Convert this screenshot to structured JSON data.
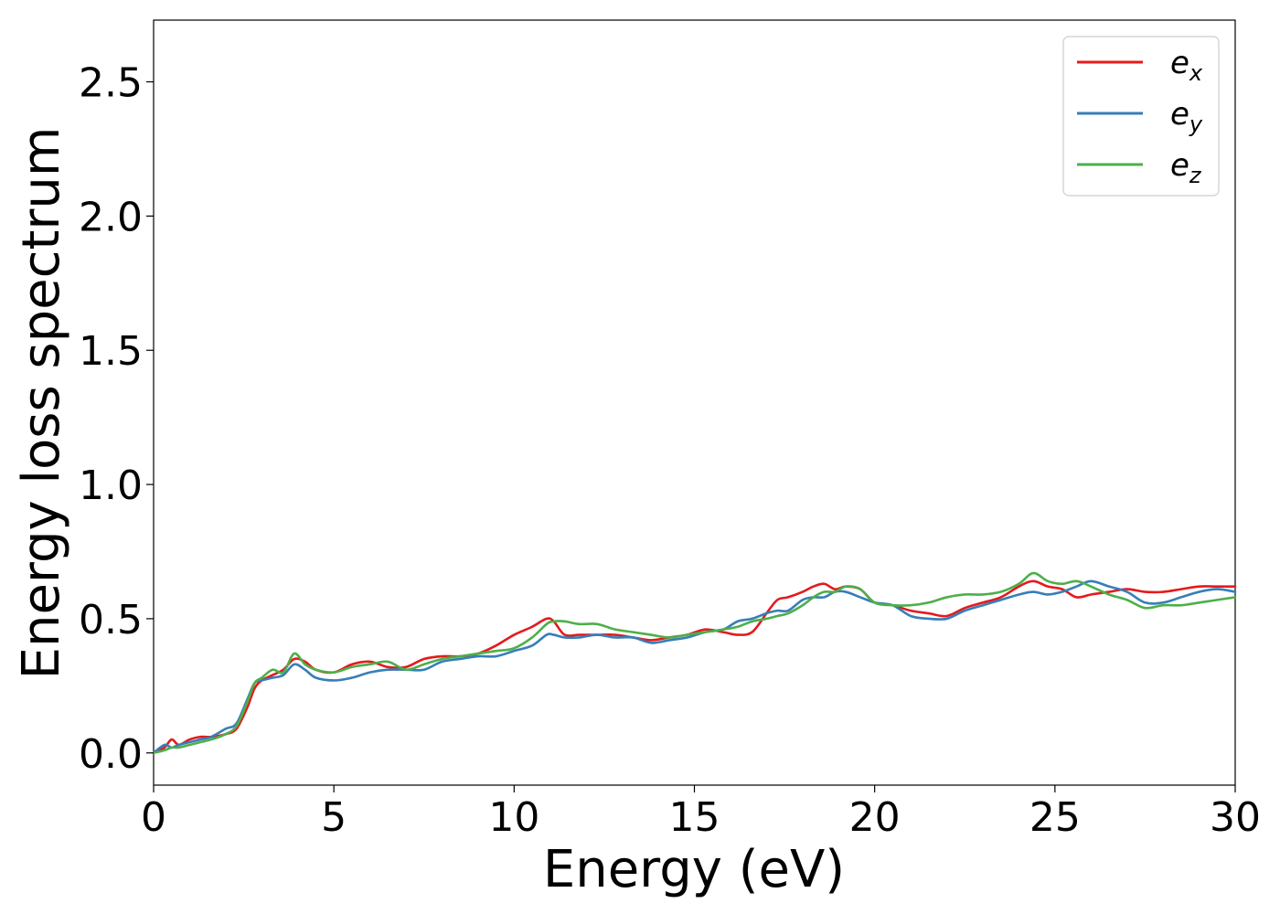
{
  "chart_data": {
    "type": "line",
    "title": "",
    "xlabel": "Energy (eV)",
    "ylabel": "Energy loss spectrum",
    "xlim": [
      0,
      30
    ],
    "ylim": [
      -0.12,
      2.73
    ],
    "xticks": [
      0,
      5,
      10,
      15,
      20,
      25,
      30
    ],
    "xtick_labels": [
      "0",
      "5",
      "10",
      "15",
      "20",
      "25",
      "30"
    ],
    "yticks": [
      0.0,
      0.5,
      1.0,
      1.5,
      2.0,
      2.5
    ],
    "ytick_labels": [
      "0.0",
      "0.5",
      "1.0",
      "1.5",
      "2.0",
      "2.5"
    ],
    "grid": false,
    "legend": {
      "placement": "top-right"
    },
    "series": [
      {
        "name": "e_x",
        "label_base": "e",
        "label_sub": "x",
        "color": "#e41a1c",
        "x": [
          0,
          0.3,
          0.5,
          0.7,
          1.0,
          1.3,
          1.6,
          2.0,
          2.3,
          2.6,
          2.8,
          3.0,
          3.3,
          3.6,
          3.9,
          4.2,
          4.5,
          5.0,
          5.5,
          6.0,
          6.5,
          7.0,
          7.5,
          8.0,
          8.5,
          9.0,
          9.5,
          10.0,
          10.5,
          10.9,
          11.1,
          11.4,
          11.8,
          12.3,
          12.8,
          13.3,
          13.8,
          14.3,
          14.8,
          15.3,
          15.8,
          16.2,
          16.6,
          17.0,
          17.3,
          17.6,
          18.0,
          18.3,
          18.6,
          18.9,
          19.2,
          19.6,
          20.0,
          20.5,
          21.0,
          21.5,
          22.0,
          22.5,
          23.0,
          23.5,
          24.0,
          24.4,
          24.8,
          25.2,
          25.6,
          26.0,
          26.5,
          27.0,
          27.5,
          28.0,
          28.5,
          29.0,
          29.5,
          30.0
        ],
        "values": [
          0.0,
          0.02,
          0.05,
          0.03,
          0.05,
          0.06,
          0.06,
          0.07,
          0.09,
          0.17,
          0.24,
          0.27,
          0.29,
          0.31,
          0.35,
          0.34,
          0.31,
          0.3,
          0.33,
          0.34,
          0.32,
          0.32,
          0.35,
          0.36,
          0.36,
          0.37,
          0.4,
          0.44,
          0.47,
          0.5,
          0.49,
          0.44,
          0.44,
          0.44,
          0.44,
          0.43,
          0.42,
          0.43,
          0.44,
          0.46,
          0.45,
          0.44,
          0.45,
          0.52,
          0.57,
          0.58,
          0.6,
          0.62,
          0.63,
          0.61,
          0.62,
          0.61,
          0.56,
          0.55,
          0.53,
          0.52,
          0.51,
          0.54,
          0.56,
          0.58,
          0.62,
          0.64,
          0.62,
          0.61,
          0.58,
          0.59,
          0.6,
          0.61,
          0.6,
          0.6,
          0.61,
          0.62,
          0.62,
          0.62
        ]
      },
      {
        "name": "e_y",
        "label_base": "e",
        "label_sub": "y",
        "color": "#377eb8",
        "x": [
          0,
          0.3,
          0.5,
          0.7,
          1.0,
          1.3,
          1.6,
          2.0,
          2.3,
          2.6,
          2.8,
          3.0,
          3.3,
          3.6,
          3.9,
          4.2,
          4.5,
          5.0,
          5.5,
          6.0,
          6.5,
          7.0,
          7.5,
          8.0,
          8.5,
          9.0,
          9.5,
          10.0,
          10.5,
          10.9,
          11.1,
          11.4,
          11.8,
          12.3,
          12.8,
          13.3,
          13.8,
          14.3,
          14.8,
          15.3,
          15.8,
          16.2,
          16.6,
          17.0,
          17.3,
          17.6,
          18.0,
          18.3,
          18.6,
          18.9,
          19.2,
          19.6,
          20.0,
          20.5,
          21.0,
          21.5,
          22.0,
          22.5,
          23.0,
          23.5,
          24.0,
          24.4,
          24.8,
          25.2,
          25.6,
          26.0,
          26.5,
          27.0,
          27.5,
          28.0,
          28.5,
          29.0,
          29.5,
          30.0
        ],
        "values": [
          0.0,
          0.03,
          0.02,
          0.03,
          0.04,
          0.05,
          0.06,
          0.09,
          0.11,
          0.2,
          0.26,
          0.27,
          0.28,
          0.29,
          0.33,
          0.31,
          0.28,
          0.27,
          0.28,
          0.3,
          0.31,
          0.31,
          0.31,
          0.34,
          0.35,
          0.36,
          0.36,
          0.38,
          0.4,
          0.44,
          0.44,
          0.43,
          0.43,
          0.44,
          0.43,
          0.43,
          0.41,
          0.42,
          0.43,
          0.45,
          0.46,
          0.49,
          0.5,
          0.52,
          0.53,
          0.53,
          0.57,
          0.58,
          0.58,
          0.6,
          0.6,
          0.58,
          0.56,
          0.55,
          0.51,
          0.5,
          0.5,
          0.53,
          0.55,
          0.57,
          0.59,
          0.6,
          0.59,
          0.6,
          0.62,
          0.64,
          0.62,
          0.6,
          0.56,
          0.56,
          0.58,
          0.6,
          0.61,
          0.6
        ]
      },
      {
        "name": "e_z",
        "label_base": "e",
        "label_sub": "z",
        "color": "#4daf4a",
        "x": [
          0,
          0.3,
          0.5,
          0.7,
          1.0,
          1.3,
          1.6,
          2.0,
          2.3,
          2.6,
          2.8,
          3.0,
          3.3,
          3.6,
          3.9,
          4.2,
          4.5,
          5.0,
          5.5,
          6.0,
          6.5,
          7.0,
          7.5,
          8.0,
          8.5,
          9.0,
          9.5,
          10.0,
          10.5,
          10.9,
          11.1,
          11.4,
          11.8,
          12.3,
          12.8,
          13.3,
          13.8,
          14.3,
          14.8,
          15.3,
          15.8,
          16.2,
          16.6,
          17.0,
          17.3,
          17.6,
          18.0,
          18.3,
          18.6,
          18.9,
          19.2,
          19.6,
          20.0,
          20.5,
          21.0,
          21.5,
          22.0,
          22.5,
          23.0,
          23.5,
          24.0,
          24.4,
          24.8,
          25.2,
          25.6,
          26.0,
          26.5,
          27.0,
          27.5,
          28.0,
          28.5,
          29.0,
          29.5,
          30.0
        ],
        "values": [
          0.0,
          0.01,
          0.02,
          0.02,
          0.03,
          0.04,
          0.05,
          0.07,
          0.1,
          0.19,
          0.26,
          0.28,
          0.31,
          0.3,
          0.37,
          0.33,
          0.31,
          0.3,
          0.32,
          0.33,
          0.34,
          0.31,
          0.33,
          0.35,
          0.36,
          0.37,
          0.38,
          0.39,
          0.43,
          0.48,
          0.49,
          0.49,
          0.48,
          0.48,
          0.46,
          0.45,
          0.44,
          0.43,
          0.44,
          0.45,
          0.46,
          0.47,
          0.49,
          0.5,
          0.51,
          0.52,
          0.55,
          0.58,
          0.6,
          0.6,
          0.62,
          0.61,
          0.56,
          0.55,
          0.55,
          0.56,
          0.58,
          0.59,
          0.59,
          0.6,
          0.63,
          0.67,
          0.64,
          0.63,
          0.64,
          0.62,
          0.59,
          0.57,
          0.54,
          0.55,
          0.55,
          0.56,
          0.57,
          0.58
        ]
      }
    ]
  }
}
